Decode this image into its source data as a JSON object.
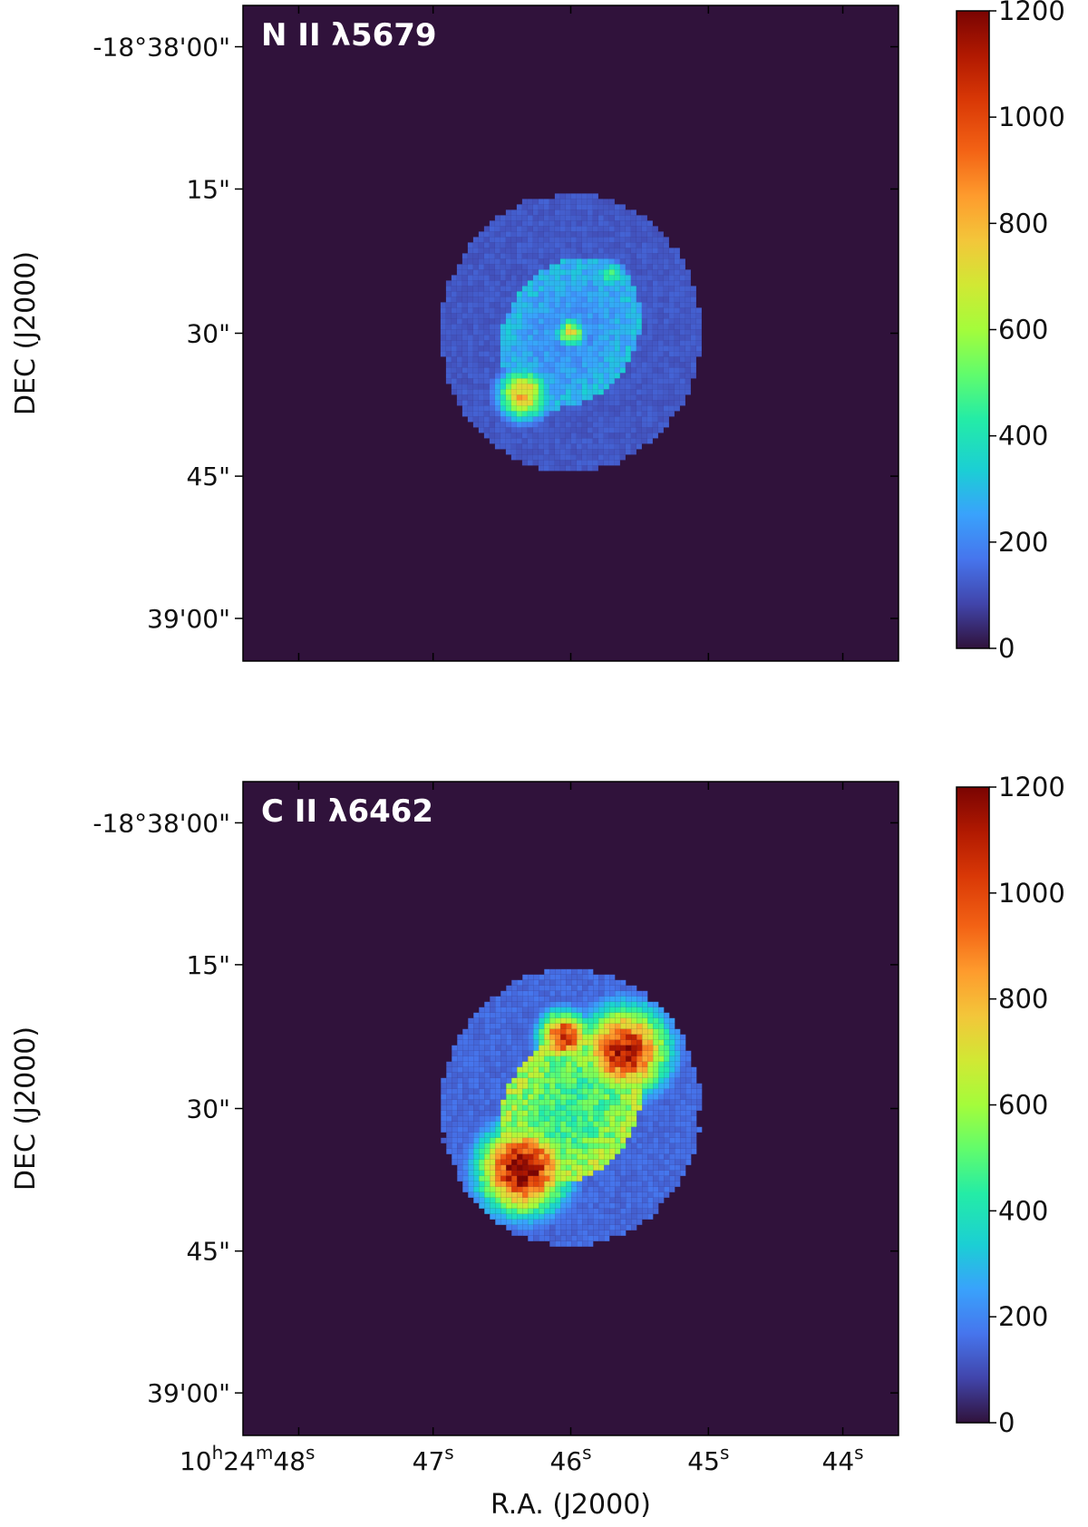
{
  "chart_data": [
    {
      "type": "heatmap",
      "title": "N II λ5679",
      "xlabel": "",
      "ylabel": "DEC (J2000)",
      "ra_ticks": [
        {
          "h": "10",
          "m": "24",
          "s": "48",
          "label_full": true
        },
        {
          "s": "47"
        },
        {
          "s": "46"
        },
        {
          "s": "45"
        },
        {
          "s": "44"
        }
      ],
      "dec_ticks": [
        "-18°38'00\"",
        "15\"",
        "30\"",
        "45\"",
        "39'00\""
      ],
      "show_ra_tick_labels": false,
      "colorbar": {
        "min": 0,
        "max": 1200,
        "ticks": [
          0,
          200,
          400,
          600,
          800,
          1000,
          1200
        ],
        "colormap": "turbo"
      },
      "emission": {
        "halo_level": 120,
        "halo_shape": "elliptical nebula, roughly 27\" wide by 29\" tall, centred near 10h24m46.0s -18°38'30\"",
        "inner_ring_level": 300,
        "features": [
          {
            "description": "central star residual",
            "ra_s": 46.0,
            "dec_arcsec": 30,
            "level": 700
          },
          {
            "description": "south-east knot",
            "ra_s": 46.35,
            "dec_arcsec": 36.5,
            "level": 820
          },
          {
            "description": "north-west rim",
            "ra_s": 45.7,
            "dec_arcsec": 24,
            "level": 480
          }
        ]
      }
    },
    {
      "type": "heatmap",
      "title": "C II λ6462",
      "xlabel": "R.A. (J2000)",
      "ylabel": "DEC (J2000)",
      "ra_ticks": [
        {
          "h": "10",
          "m": "24",
          "s": "48",
          "label_full": true
        },
        {
          "s": "47"
        },
        {
          "s": "46"
        },
        {
          "s": "45"
        },
        {
          "s": "44"
        }
      ],
      "dec_ticks": [
        "-18°38'00\"",
        "15\"",
        "30\"",
        "45\"",
        "39'00\""
      ],
      "show_ra_tick_labels": true,
      "colorbar": {
        "min": 0,
        "max": 1200,
        "ticks": [
          0,
          200,
          400,
          600,
          800,
          1000,
          1200
        ],
        "colormap": "turbo"
      },
      "emission": {
        "halo_level": 150,
        "halo_shape": "elliptical nebula, roughly 27\" wide by 29\" tall, centred near 10h24m46.0s -18°38'30\"",
        "inner_ring_level": 620,
        "features": [
          {
            "description": "south-east lobe",
            "ra_s": 46.35,
            "dec_arcsec": 36.5,
            "level": 1250
          },
          {
            "description": "north-west lobe",
            "ra_s": 45.6,
            "dec_arcsec": 24,
            "level": 1150
          },
          {
            "description": "northern knot",
            "ra_s": 46.05,
            "dec_arcsec": 22.5,
            "level": 1100
          },
          {
            "description": "central star residual",
            "ra_s": 46.0,
            "dec_arcsec": 30,
            "level": 400
          }
        ]
      }
    }
  ]
}
